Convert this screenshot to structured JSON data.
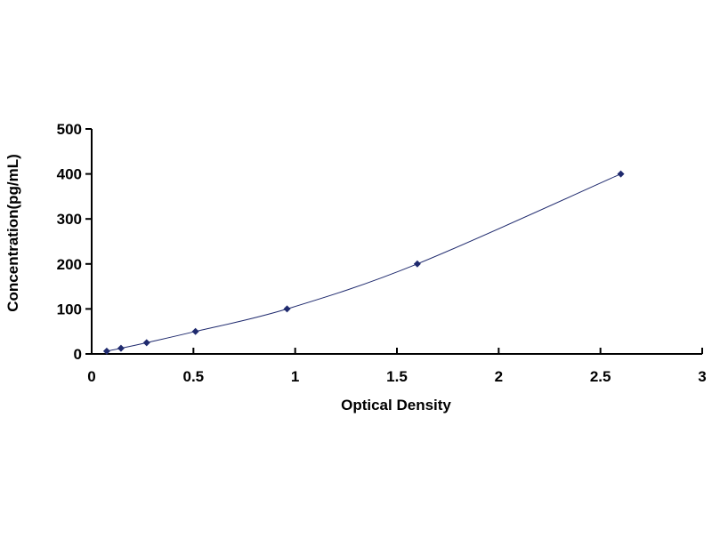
{
  "chart_data": {
    "type": "scatter",
    "title": "",
    "xlabel": "Optical Density",
    "ylabel": "Concentration(pg/mL)",
    "xlim": [
      0,
      3
    ],
    "ylim": [
      0,
      500
    ],
    "xticks": [
      "0",
      "0.5",
      "1",
      "1.5",
      "2",
      "2.5",
      "3"
    ],
    "yticks": [
      "0",
      "100",
      "200",
      "300",
      "400",
      "500"
    ],
    "grid": false,
    "marker_color": "#1f2a6e",
    "line_color": "#1f2a6e",
    "fit": "smooth curve",
    "series": [
      {
        "x": [
          0.074,
          0.144,
          0.27,
          0.51,
          0.96,
          1.6,
          2.6
        ],
        "y": [
          6.25,
          12.5,
          25,
          50,
          100,
          200,
          400
        ]
      }
    ]
  }
}
